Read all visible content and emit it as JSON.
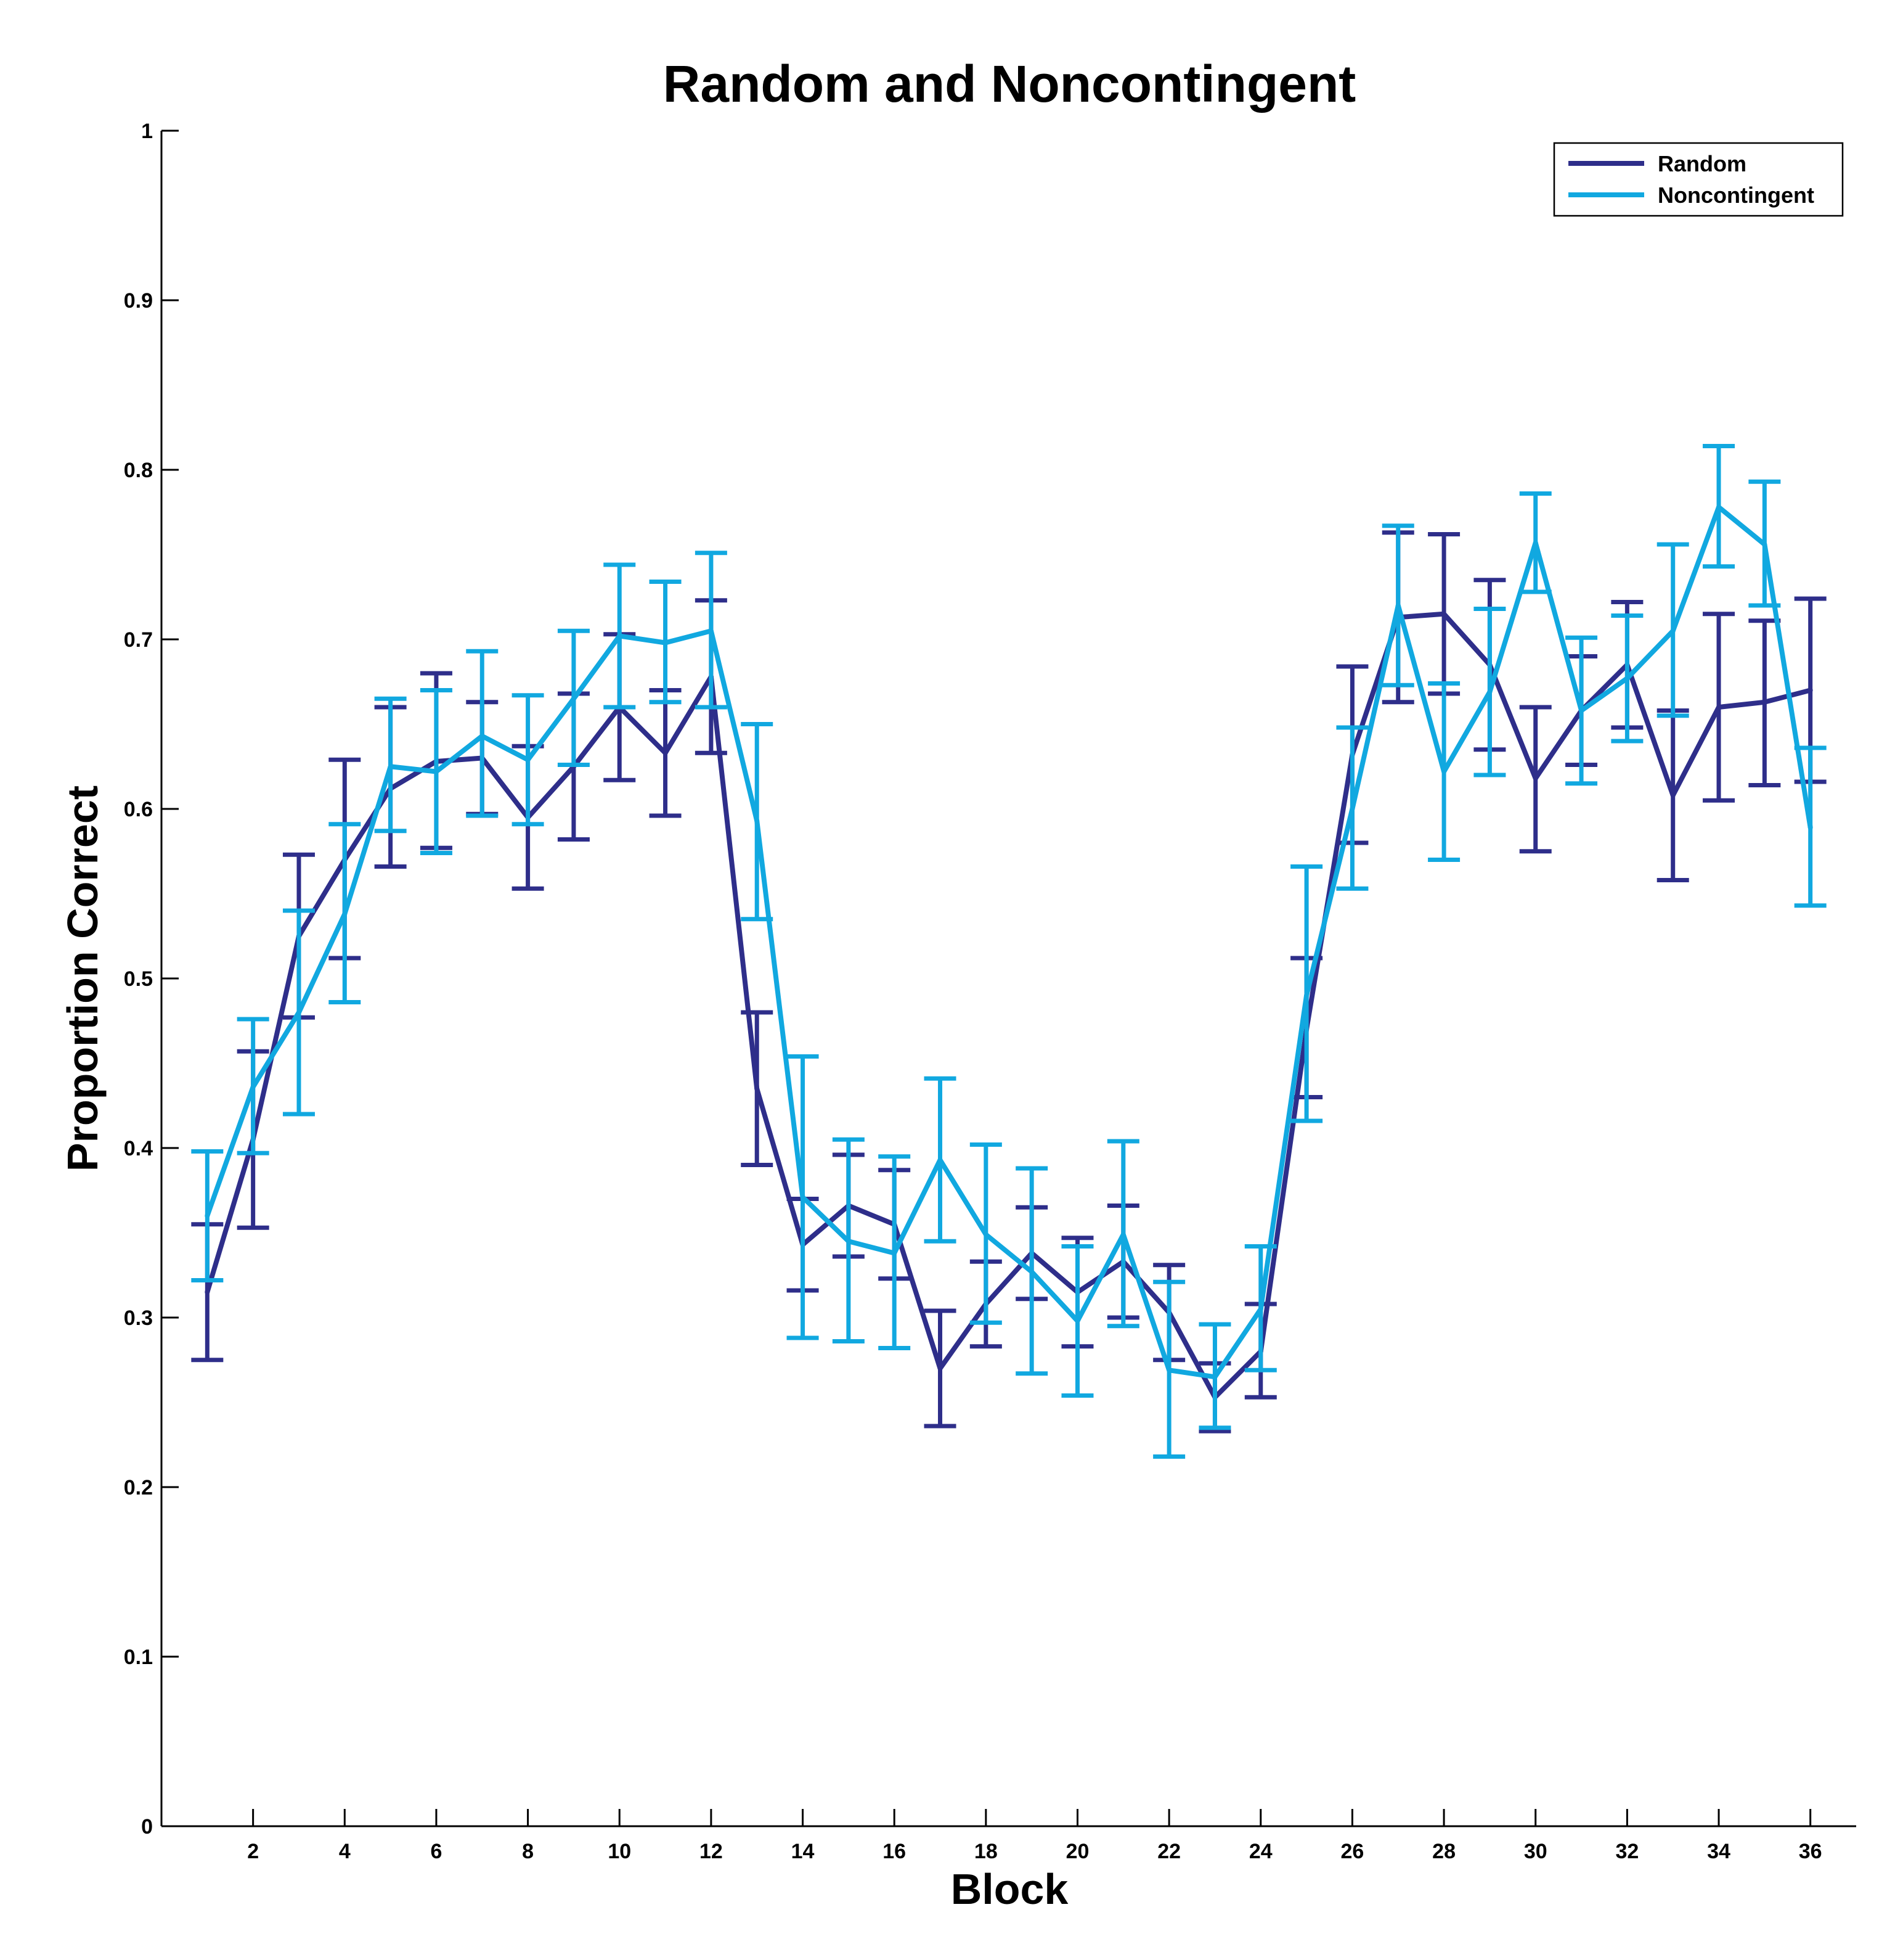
{
  "chart_data": {
    "type": "line",
    "title": "Random and Noncontingent",
    "xlabel": "Block",
    "ylabel": "Proportion Correct",
    "xlim": [
      0,
      37
    ],
    "ylim": [
      0,
      1
    ],
    "xticks": [
      2,
      4,
      6,
      8,
      10,
      12,
      14,
      16,
      18,
      20,
      22,
      24,
      26,
      28,
      30,
      32,
      34,
      36
    ],
    "yticks": [
      "0",
      "0.1",
      "0.2",
      "0.3",
      "0.4",
      "0.5",
      "0.6",
      "0.7",
      "0.8",
      "0.9",
      "1"
    ],
    "grid": false,
    "legend_position": "top-right",
    "error_bars": true,
    "x": [
      1,
      2,
      3,
      4,
      5,
      6,
      7,
      8,
      9,
      10,
      11,
      12,
      13,
      14,
      15,
      16,
      17,
      18,
      19,
      20,
      21,
      22,
      23,
      24,
      25,
      26,
      27,
      28,
      29,
      30,
      31,
      32,
      33,
      34,
      35,
      36
    ],
    "series": [
      {
        "name": "Random",
        "color": "#2E2E8A",
        "values": [
          0.315,
          0.405,
          0.525,
          0.57,
          0.612,
          0.628,
          0.63,
          0.595,
          0.625,
          0.66,
          0.633,
          0.678,
          0.435,
          0.343,
          0.366,
          0.355,
          0.27,
          0.308,
          0.338,
          0.315,
          0.333,
          0.303,
          0.253,
          0.28,
          0.47,
          0.632,
          0.713,
          0.715,
          0.685,
          0.618,
          0.658,
          0.685,
          0.608,
          0.66,
          0.663,
          0.67
        ],
        "error_low": [
          0.275,
          0.353,
          0.477,
          0.512,
          0.566,
          0.577,
          0.597,
          0.553,
          0.582,
          0.617,
          0.596,
          0.633,
          0.39,
          0.316,
          0.336,
          0.323,
          0.236,
          0.283,
          0.311,
          0.283,
          0.3,
          0.275,
          0.233,
          0.253,
          0.43,
          0.58,
          0.663,
          0.668,
          0.635,
          0.575,
          0.626,
          0.648,
          0.558,
          0.605,
          0.614,
          0.616
        ],
        "error_high": [
          0.355,
          0.457,
          0.573,
          0.629,
          0.66,
          0.68,
          0.663,
          0.637,
          0.668,
          0.703,
          0.67,
          0.723,
          0.48,
          0.37,
          0.396,
          0.387,
          0.304,
          0.333,
          0.365,
          0.347,
          0.366,
          0.331,
          0.273,
          0.308,
          0.512,
          0.684,
          0.763,
          0.762,
          0.735,
          0.66,
          0.69,
          0.722,
          0.658,
          0.715,
          0.711,
          0.724
        ]
      },
      {
        "name": "Noncontingent",
        "color": "#11A8E0",
        "values": [
          0.36,
          0.436,
          0.48,
          0.538,
          0.625,
          0.622,
          0.643,
          0.629,
          0.665,
          0.702,
          0.698,
          0.705,
          0.593,
          0.371,
          0.345,
          0.338,
          0.393,
          0.349,
          0.327,
          0.298,
          0.349,
          0.269,
          0.265,
          0.305,
          0.49,
          0.6,
          0.72,
          0.622,
          0.669,
          0.757,
          0.658,
          0.677,
          0.705,
          0.778,
          0.756,
          0.589
        ],
        "error_low": [
          0.322,
          0.397,
          0.42,
          0.486,
          0.587,
          0.574,
          0.596,
          0.591,
          0.626,
          0.66,
          0.663,
          0.66,
          0.535,
          0.288,
          0.286,
          0.282,
          0.345,
          0.297,
          0.267,
          0.254,
          0.295,
          0.218,
          0.235,
          0.269,
          0.416,
          0.553,
          0.673,
          0.57,
          0.62,
          0.728,
          0.615,
          0.64,
          0.655,
          0.743,
          0.72,
          0.543
        ],
        "error_high": [
          0.398,
          0.476,
          0.54,
          0.591,
          0.665,
          0.67,
          0.693,
          0.667,
          0.705,
          0.744,
          0.734,
          0.751,
          0.65,
          0.454,
          0.405,
          0.395,
          0.441,
          0.402,
          0.388,
          0.342,
          0.404,
          0.321,
          0.296,
          0.342,
          0.566,
          0.648,
          0.767,
          0.674,
          0.718,
          0.786,
          0.701,
          0.714,
          0.756,
          0.814,
          0.793,
          0.636
        ]
      }
    ]
  }
}
